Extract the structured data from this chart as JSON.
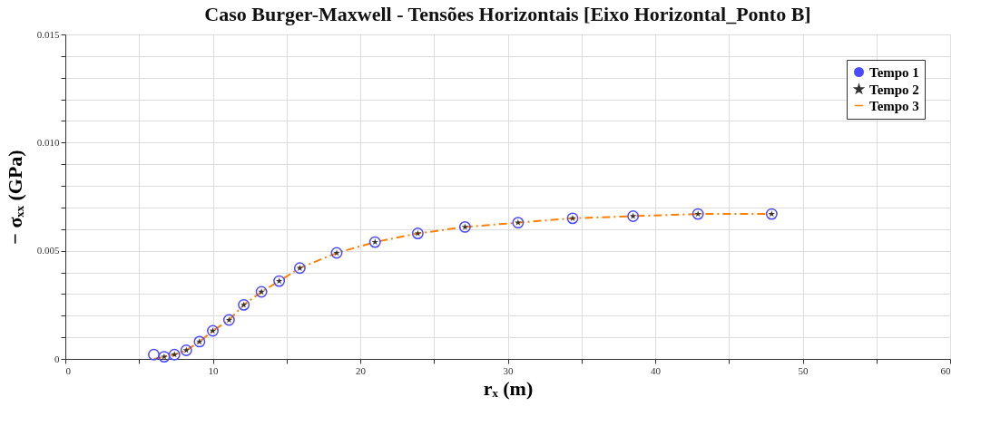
{
  "chart_data": {
    "type": "scatter",
    "title": "Caso Burger-Maxwell - Tensões Horizontais [Eixo Horizontal_Ponto B]",
    "xlabel": "rₓ (m)",
    "ylabel": "− σₓₓ (GPa)",
    "xlim": [
      0,
      60
    ],
    "ylim": [
      0,
      0.015
    ],
    "xticks": [
      0,
      {
        "value": 5,
        "label": null
      },
      10,
      {
        "value": 15,
        "label": null
      },
      20,
      {
        "value": 25,
        "label": null
      },
      30,
      {
        "value": 35,
        "label": null
      },
      40,
      {
        "value": 45,
        "label": null
      },
      50,
      {
        "value": 55,
        "label": null
      },
      60
    ],
    "yticks": [
      {
        "value": 0,
        "label": "0"
      },
      {
        "value": 0.001,
        "label": null
      },
      {
        "value": 0.002,
        "label": null
      },
      {
        "value": 0.003,
        "label": null
      },
      {
        "value": 0.004,
        "label": null
      },
      {
        "value": 0.005,
        "label": "0.005"
      },
      {
        "value": 0.006,
        "label": null
      },
      {
        "value": 0.007,
        "label": null
      },
      {
        "value": 0.008,
        "label": null
      },
      {
        "value": 0.009,
        "label": null
      },
      {
        "value": 0.01,
        "label": "0.010"
      },
      {
        "value": 0.011,
        "label": null
      },
      {
        "value": 0.012,
        "label": null
      },
      {
        "value": 0.013,
        "label": null
      },
      {
        "value": 0.014,
        "label": null
      },
      {
        "value": 0.015,
        "label": "0.015"
      }
    ],
    "grid": true,
    "legend": "top right",
    "series": [
      {
        "name": "Tempo 1",
        "type": "scatter",
        "marker": "circle",
        "color": "#4a4aff",
        "x": [
          6.0,
          6.7,
          7.4,
          8.2,
          9.1,
          10.0,
          11.1,
          12.1,
          13.3,
          14.5,
          15.9,
          18.4,
          21.0,
          23.9,
          27.1,
          30.7,
          34.4,
          38.5,
          42.9,
          47.9
        ],
        "values": [
          0.0002,
          0.0001,
          0.0002,
          0.0004,
          0.0008,
          0.0013,
          0.0018,
          0.0025,
          0.0031,
          0.0036,
          0.0042,
          0.0049,
          0.0054,
          0.0058,
          0.0061,
          0.0063,
          0.0065,
          0.0066,
          0.0067,
          0.0067
        ]
      },
      {
        "name": "Tempo 2",
        "type": "scatter",
        "marker": "star",
        "color": "#333333",
        "x": [
          6.7,
          7.4,
          8.2,
          9.1,
          10.0,
          11.1,
          12.1,
          13.3,
          14.5,
          15.9,
          18.4,
          21.0,
          23.9,
          27.1,
          30.7,
          34.4,
          38.5,
          42.9,
          47.9
        ],
        "values": [
          0.0001,
          0.0002,
          0.0004,
          0.0008,
          0.0013,
          0.0018,
          0.0025,
          0.0031,
          0.0036,
          0.0042,
          0.0049,
          0.0054,
          0.0058,
          0.0061,
          0.0063,
          0.0065,
          0.0066,
          0.0067,
          0.0067
        ]
      },
      {
        "name": "Tempo 3",
        "type": "line",
        "line_style": "dashed",
        "color": "#ff8000",
        "x": [
          6.0,
          6.7,
          7.4,
          8.2,
          9.1,
          10.0,
          11.1,
          12.1,
          13.3,
          14.5,
          15.9,
          18.4,
          21.0,
          23.9,
          27.1,
          30.7,
          34.4,
          38.5,
          42.9,
          47.9
        ],
        "values": [
          0.0,
          0.0001,
          0.0002,
          0.0004,
          0.0008,
          0.0013,
          0.0018,
          0.0025,
          0.0031,
          0.0036,
          0.0042,
          0.0049,
          0.0054,
          0.0058,
          0.0061,
          0.0063,
          0.0065,
          0.0066,
          0.0067,
          0.0067
        ]
      }
    ]
  }
}
